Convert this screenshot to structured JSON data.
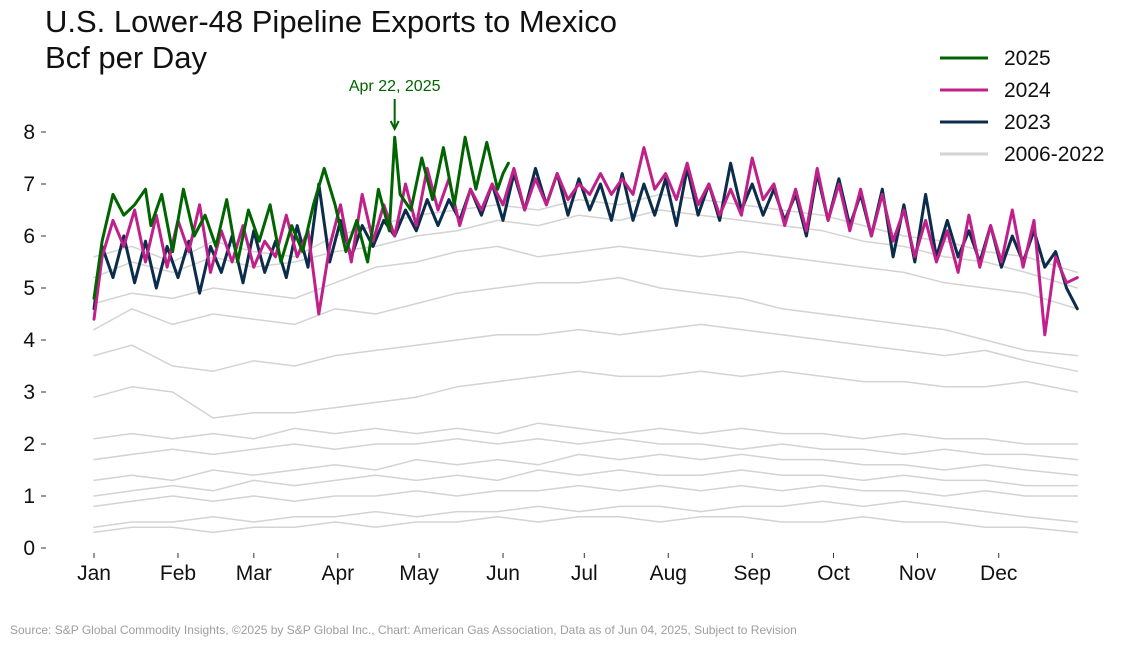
{
  "chart_data": {
    "type": "line",
    "title": "U.S. Lower-48 Pipeline Exports to Mexico",
    "subtitle": "Bcf per Day",
    "xlabel": "",
    "ylabel": "",
    "x_ticks": [
      "Jan",
      "Feb",
      "Mar",
      "Apr",
      "May",
      "Jun",
      "Jul",
      "Aug",
      "Sep",
      "Oct",
      "Nov",
      "Dec"
    ],
    "y_ticks": [
      0,
      1,
      2,
      3,
      4,
      5,
      6,
      7,
      8
    ],
    "ylim": [
      0,
      8.6
    ],
    "xlim": [
      1,
      365
    ],
    "grid": false,
    "legend_position": "top-right",
    "annotation": {
      "text": "Apr 22, 2025",
      "x": 112,
      "y": 7.9,
      "color": "#006400"
    },
    "series": [
      {
        "name": "2025",
        "color": "#006400",
        "width": 3,
        "x": [
          1,
          4,
          8,
          12,
          16,
          20,
          22,
          26,
          30,
          34,
          38,
          42,
          46,
          50,
          54,
          58,
          62,
          66,
          70,
          74,
          78,
          82,
          86,
          90,
          94,
          98,
          102,
          106,
          110,
          112,
          114,
          118,
          122,
          126,
          130,
          134,
          138,
          142,
          146,
          150,
          152,
          154
        ],
        "y": [
          4.8,
          5.9,
          6.8,
          6.4,
          6.6,
          6.9,
          6.2,
          6.8,
          5.7,
          6.9,
          6.0,
          6.4,
          5.8,
          6.7,
          5.5,
          6.5,
          5.9,
          6.6,
          5.5,
          6.2,
          5.7,
          6.6,
          7.3,
          6.6,
          5.7,
          6.3,
          5.5,
          6.9,
          6.1,
          7.9,
          6.8,
          6.5,
          7.5,
          6.7,
          7.7,
          6.6,
          7.9,
          6.9,
          7.8,
          6.9,
          7.2,
          7.4
        ]
      },
      {
        "name": "2024",
        "color": "#C0208A",
        "width": 3,
        "x": [
          1,
          4,
          8,
          12,
          16,
          20,
          24,
          28,
          32,
          36,
          40,
          44,
          48,
          52,
          56,
          60,
          64,
          68,
          72,
          76,
          80,
          84,
          88,
          92,
          96,
          100,
          104,
          108,
          112,
          116,
          120,
          124,
          128,
          132,
          136,
          140,
          144,
          148,
          152,
          156,
          160,
          164,
          168,
          172,
          176,
          180,
          184,
          188,
          192,
          196,
          200,
          204,
          208,
          212,
          216,
          220,
          224,
          228,
          232,
          236,
          240,
          244,
          248,
          252,
          256,
          260,
          264,
          268,
          272,
          276,
          280,
          284,
          288,
          292,
          296,
          300,
          304,
          308,
          312,
          316,
          320,
          324,
          328,
          332,
          336,
          340,
          344,
          348,
          352,
          356,
          360,
          364
        ],
        "y": [
          4.4,
          5.6,
          6.3,
          5.8,
          6.5,
          5.5,
          6.4,
          5.4,
          6.3,
          5.7,
          6.6,
          5.3,
          6.1,
          5.5,
          6.2,
          5.4,
          5.9,
          5.6,
          6.4,
          5.6,
          6.1,
          4.5,
          5.8,
          6.6,
          5.5,
          6.8,
          5.9,
          6.6,
          6.0,
          7.0,
          6.2,
          7.3,
          6.5,
          7.1,
          6.2,
          6.9,
          6.5,
          7.0,
          6.6,
          7.3,
          6.5,
          7.1,
          6.6,
          7.2,
          6.7,
          7.0,
          6.8,
          7.2,
          6.8,
          7.1,
          6.8,
          7.7,
          6.9,
          7.2,
          6.7,
          7.4,
          6.6,
          7.0,
          6.4,
          6.9,
          6.4,
          7.5,
          6.7,
          7.0,
          6.2,
          6.9,
          6.1,
          7.3,
          6.3,
          7.0,
          6.1,
          6.9,
          6.0,
          6.8,
          5.9,
          6.5,
          5.6,
          6.3,
          5.5,
          6.1,
          5.3,
          6.4,
          5.4,
          6.2,
          5.5,
          6.5,
          5.4,
          6.3,
          4.1,
          5.6,
          5.1,
          5.2
        ]
      },
      {
        "name": "2023",
        "color": "#0B2C4A",
        "width": 3,
        "x": [
          1,
          4,
          8,
          12,
          16,
          20,
          24,
          28,
          32,
          36,
          40,
          44,
          48,
          52,
          56,
          60,
          64,
          68,
          72,
          76,
          80,
          84,
          88,
          92,
          96,
          100,
          104,
          108,
          112,
          116,
          120,
          124,
          128,
          132,
          136,
          140,
          144,
          148,
          152,
          156,
          160,
          164,
          168,
          172,
          176,
          180,
          184,
          188,
          192,
          196,
          200,
          204,
          208,
          212,
          216,
          220,
          224,
          228,
          232,
          236,
          240,
          244,
          248,
          252,
          256,
          260,
          264,
          268,
          272,
          276,
          280,
          284,
          288,
          292,
          296,
          300,
          304,
          308,
          312,
          316,
          320,
          324,
          328,
          332,
          336,
          340,
          344,
          348,
          352,
          356,
          360,
          364
        ],
        "y": [
          4.6,
          5.8,
          5.2,
          6.0,
          5.1,
          5.9,
          5.0,
          5.8,
          5.2,
          5.9,
          4.9,
          5.8,
          5.3,
          6.0,
          5.1,
          6.1,
          5.3,
          5.9,
          5.2,
          6.2,
          5.4,
          7.0,
          5.5,
          6.3,
          5.6,
          6.2,
          5.8,
          6.3,
          6.0,
          6.5,
          6.1,
          6.7,
          6.2,
          6.7,
          6.3,
          6.9,
          6.4,
          7.0,
          6.3,
          7.2,
          6.5,
          7.3,
          6.6,
          7.2,
          6.4,
          7.1,
          6.5,
          7.0,
          6.3,
          7.2,
          6.3,
          7.0,
          6.4,
          7.1,
          6.2,
          7.3,
          6.4,
          7.0,
          6.3,
          7.4,
          6.5,
          7.0,
          6.4,
          6.9,
          6.3,
          6.8,
          6.0,
          7.2,
          6.3,
          7.1,
          6.2,
          6.8,
          6.0,
          6.9,
          5.6,
          6.6,
          5.5,
          6.8,
          5.6,
          6.3,
          5.6,
          6.1,
          5.5,
          6.2,
          5.4,
          6.0,
          5.5,
          6.1,
          5.4,
          5.7,
          5.0,
          4.6
        ]
      },
      {
        "name": "2006-2022",
        "color": "#D3D3D3",
        "width": 1.5,
        "x": [
          1,
          15,
          30,
          45,
          60,
          75,
          90,
          105,
          120,
          135,
          150,
          165,
          180,
          195,
          210,
          225,
          240,
          255,
          270,
          285,
          300,
          315,
          330,
          345,
          364
        ],
        "y": [
          0.8,
          0.9,
          1.0,
          0.9,
          1.0,
          0.9,
          1.0,
          1.0,
          1.1,
          1.0,
          1.1,
          1.1,
          1.2,
          1.1,
          1.2,
          1.1,
          1.2,
          1.1,
          1.2,
          1.1,
          1.1,
          1.0,
          1.1,
          1.0,
          1.0
        ]
      },
      {
        "name": "2006-2022",
        "color": "#D3D3D3",
        "width": 1.5,
        "x": [
          1,
          15,
          30,
          45,
          60,
          75,
          90,
          105,
          120,
          135,
          150,
          165,
          180,
          195,
          210,
          225,
          240,
          255,
          270,
          285,
          300,
          315,
          330,
          345,
          364
        ],
        "y": [
          1.3,
          1.4,
          1.3,
          1.5,
          1.4,
          1.5,
          1.6,
          1.5,
          1.7,
          1.6,
          1.7,
          1.6,
          1.8,
          1.7,
          1.8,
          1.7,
          1.8,
          1.7,
          1.7,
          1.6,
          1.6,
          1.5,
          1.6,
          1.5,
          1.4
        ]
      },
      {
        "name": "2006-2022",
        "color": "#D3D3D3",
        "width": 1.5,
        "x": [
          1,
          15,
          30,
          45,
          60,
          75,
          90,
          105,
          120,
          135,
          150,
          165,
          180,
          195,
          210,
          225,
          240,
          255,
          270,
          285,
          300,
          315,
          330,
          345,
          364
        ],
        "y": [
          1.7,
          1.8,
          1.9,
          1.8,
          1.9,
          2.0,
          1.9,
          2.0,
          2.0,
          2.1,
          2.0,
          2.1,
          2.0,
          2.1,
          2.0,
          2.0,
          1.9,
          2.0,
          1.9,
          1.9,
          1.8,
          1.9,
          1.8,
          1.8,
          1.7
        ]
      },
      {
        "name": "2006-2022",
        "color": "#D3D3D3",
        "width": 1.5,
        "x": [
          1,
          15,
          30,
          45,
          60,
          75,
          90,
          105,
          120,
          135,
          150,
          165,
          180,
          195,
          210,
          225,
          240,
          255,
          270,
          285,
          300,
          315,
          330,
          345,
          364
        ],
        "y": [
          2.1,
          2.2,
          2.1,
          2.2,
          2.1,
          2.3,
          2.2,
          2.3,
          2.2,
          2.3,
          2.2,
          2.4,
          2.3,
          2.2,
          2.3,
          2.2,
          2.3,
          2.2,
          2.2,
          2.1,
          2.2,
          2.1,
          2.1,
          2.0,
          2.0
        ]
      },
      {
        "name": "2006-2022",
        "color": "#D3D3D3",
        "width": 1.5,
        "x": [
          1,
          15,
          30,
          45,
          60,
          75,
          90,
          105,
          120,
          135,
          150,
          165,
          180,
          195,
          210,
          225,
          240,
          255,
          270,
          285,
          300,
          315,
          330,
          345,
          364
        ],
        "y": [
          0.4,
          0.5,
          0.5,
          0.6,
          0.5,
          0.6,
          0.6,
          0.7,
          0.6,
          0.7,
          0.7,
          0.8,
          0.7,
          0.8,
          0.8,
          0.7,
          0.8,
          0.8,
          0.9,
          0.8,
          0.9,
          0.8,
          0.7,
          0.6,
          0.5
        ]
      },
      {
        "name": "2006-2022",
        "color": "#D3D3D3",
        "width": 1.5,
        "x": [
          1,
          15,
          30,
          45,
          60,
          75,
          90,
          105,
          120,
          135,
          150,
          165,
          180,
          195,
          210,
          225,
          240,
          255,
          270,
          285,
          300,
          315,
          330,
          345,
          364
        ],
        "y": [
          2.9,
          3.1,
          3.0,
          2.5,
          2.6,
          2.6,
          2.7,
          2.8,
          2.9,
          3.1,
          3.2,
          3.3,
          3.4,
          3.3,
          3.3,
          3.4,
          3.3,
          3.4,
          3.3,
          3.2,
          3.2,
          3.1,
          3.1,
          3.2,
          3.0
        ]
      },
      {
        "name": "2006-2022",
        "color": "#D3D3D3",
        "width": 1.5,
        "x": [
          1,
          15,
          30,
          45,
          60,
          75,
          90,
          105,
          120,
          135,
          150,
          165,
          180,
          195,
          210,
          225,
          240,
          255,
          270,
          285,
          300,
          315,
          330,
          345,
          364
        ],
        "y": [
          3.7,
          3.9,
          3.5,
          3.4,
          3.6,
          3.5,
          3.7,
          3.8,
          3.9,
          4.0,
          4.1,
          4.1,
          4.2,
          4.1,
          4.2,
          4.3,
          4.2,
          4.1,
          4.0,
          3.9,
          3.8,
          3.7,
          3.8,
          3.6,
          3.4
        ]
      },
      {
        "name": "2006-2022",
        "color": "#D3D3D3",
        "width": 1.5,
        "x": [
          1,
          15,
          30,
          45,
          60,
          75,
          90,
          105,
          120,
          135,
          150,
          165,
          180,
          195,
          210,
          225,
          240,
          255,
          270,
          285,
          300,
          315,
          330,
          345,
          364
        ],
        "y": [
          4.2,
          4.6,
          4.3,
          4.5,
          4.4,
          4.3,
          4.6,
          4.5,
          4.7,
          4.9,
          5.0,
          5.1,
          5.1,
          5.2,
          5.0,
          4.9,
          4.8,
          4.6,
          4.5,
          4.4,
          4.3,
          4.2,
          4.0,
          3.8,
          3.7
        ]
      },
      {
        "name": "2006-2022",
        "color": "#D3D3D3",
        "width": 1.5,
        "x": [
          1,
          15,
          30,
          45,
          60,
          75,
          90,
          105,
          120,
          135,
          150,
          165,
          180,
          195,
          210,
          225,
          240,
          255,
          270,
          285,
          300,
          315,
          330,
          345,
          364
        ],
        "y": [
          4.7,
          4.9,
          4.8,
          5.0,
          4.9,
          4.8,
          5.1,
          5.4,
          5.5,
          5.7,
          5.8,
          5.6,
          5.7,
          5.8,
          5.7,
          5.6,
          5.7,
          5.6,
          5.5,
          5.4,
          5.3,
          5.1,
          5.0,
          4.9,
          4.6
        ]
      },
      {
        "name": "2006-2022",
        "color": "#D3D3D3",
        "width": 1.5,
        "x": [
          1,
          15,
          30,
          45,
          60,
          75,
          90,
          105,
          120,
          135,
          150,
          165,
          180,
          195,
          210,
          225,
          240,
          255,
          270,
          285,
          300,
          315,
          330,
          345,
          364
        ],
        "y": [
          5.2,
          5.5,
          5.3,
          5.6,
          5.4,
          5.5,
          5.7,
          5.8,
          6.0,
          6.1,
          6.3,
          6.2,
          6.4,
          6.3,
          6.5,
          6.4,
          6.3,
          6.2,
          6.1,
          5.9,
          5.8,
          5.6,
          5.5,
          5.3,
          5.0
        ]
      },
      {
        "name": "2006-2022",
        "color": "#D3D3D3",
        "width": 1.5,
        "x": [
          1,
          15,
          30,
          45,
          60,
          75,
          90,
          105,
          120,
          135,
          150,
          165,
          180,
          195,
          210,
          225,
          240,
          255,
          270,
          285,
          300,
          315,
          330,
          345,
          364
        ],
        "y": [
          5.6,
          5.8,
          5.5,
          5.9,
          5.7,
          5.6,
          6.0,
          6.2,
          6.4,
          6.5,
          6.6,
          6.5,
          6.7,
          6.6,
          6.8,
          6.7,
          6.6,
          6.5,
          6.4,
          6.2,
          6.0,
          5.9,
          5.7,
          5.6,
          5.3
        ]
      },
      {
        "name": "2006-2022",
        "color": "#D3D3D3",
        "width": 1.5,
        "x": [
          1,
          15,
          30,
          45,
          60,
          75,
          90,
          105,
          120,
          135,
          150,
          165,
          180,
          195,
          210,
          225,
          240,
          255,
          270,
          285,
          300,
          315,
          330,
          345,
          364
        ],
        "y": [
          1.0,
          1.1,
          1.2,
          1.1,
          1.3,
          1.2,
          1.3,
          1.4,
          1.3,
          1.4,
          1.3,
          1.5,
          1.4,
          1.5,
          1.4,
          1.4,
          1.5,
          1.4,
          1.4,
          1.3,
          1.4,
          1.3,
          1.3,
          1.2,
          1.2
        ]
      },
      {
        "name": "2006-2022",
        "color": "#D3D3D3",
        "width": 1.5,
        "x": [
          1,
          15,
          30,
          45,
          60,
          75,
          90,
          105,
          120,
          135,
          150,
          165,
          180,
          195,
          210,
          225,
          240,
          255,
          270,
          285,
          300,
          315,
          330,
          345,
          364
        ],
        "y": [
          0.3,
          0.4,
          0.4,
          0.3,
          0.4,
          0.4,
          0.5,
          0.4,
          0.5,
          0.5,
          0.6,
          0.5,
          0.6,
          0.6,
          0.5,
          0.6,
          0.6,
          0.5,
          0.5,
          0.6,
          0.5,
          0.5,
          0.4,
          0.4,
          0.3
        ]
      }
    ]
  },
  "legend": [
    {
      "label": "2025",
      "color": "#006400"
    },
    {
      "label": "2024",
      "color": "#C0208A"
    },
    {
      "label": "2023",
      "color": "#0B2C4A"
    },
    {
      "label": "2006-2022",
      "color": "#D3D3D3"
    }
  ],
  "source": "Source: S&P Global Commodity Insights, ©2025 by S&P Global Inc., Chart: American Gas Association, Data as of Jun 04, 2025, Subject to Revision"
}
